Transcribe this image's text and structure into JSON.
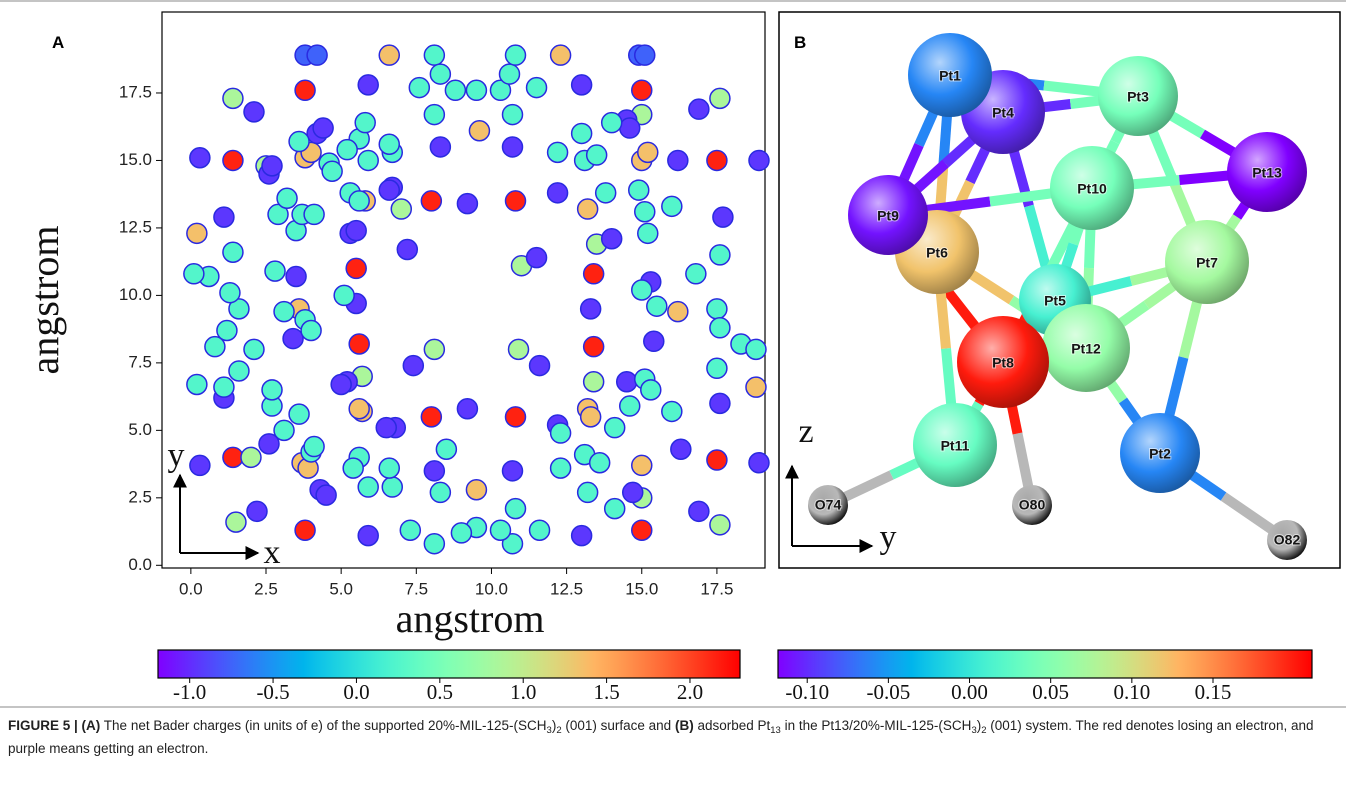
{
  "chart_data": {
    "type": "scatter",
    "panel_label": "A",
    "x_label": "angstrom",
    "y_label": "angstrom",
    "arrow_x_label": "x",
    "arrow_y_label": "y",
    "xlim": [
      -0.96,
      19.1
    ],
    "ylim": [
      -0.1,
      20.5
    ],
    "xticks": [
      {
        "value": 0,
        "label": "0.0"
      },
      2.5,
      {
        "value": 5,
        "label": "5.0"
      },
      7.5,
      {
        "value": 10,
        "label": "10.0"
      },
      12.5,
      {
        "value": 15,
        "label": "15.0"
      },
      17.5
    ],
    "yticks": [
      {
        "value": 0,
        "label": "0.0"
      },
      2.5,
      {
        "value": 5,
        "label": "5.0"
      },
      7.5,
      {
        "value": 10,
        "label": "10.0"
      },
      12.5,
      {
        "value": 15,
        "label": "15.0"
      },
      17.5
    ],
    "marker_edge_color": "#2a2ae0",
    "series": [
      {
        "x": [
          1.4,
          3.8,
          5.5,
          5.6,
          1.4,
          3.8,
          8.0,
          10.8,
          8.0,
          10.8,
          15.0,
          17.5,
          13.4,
          13.4,
          15.0,
          17.5
        ],
        "y": [
          15.0,
          17.6,
          11.0,
          8.2,
          4.0,
          1.3,
          13.5,
          13.5,
          5.5,
          5.5,
          17.6,
          15.0,
          10.8,
          8.1,
          1.3,
          3.9
        ],
        "values": [
          2.15,
          2.15,
          2.15,
          2.15,
          2.15,
          2.15,
          2.15,
          2.15,
          2.15,
          2.15,
          2.15,
          2.15,
          2.15,
          2.15,
          2.15,
          2.15
        ]
      },
      {
        "x": [
          0.2,
          3.8,
          4.0,
          3.6,
          5.8,
          6.6,
          12.3,
          9.6,
          13.2,
          15.0,
          15.2,
          16.2,
          18.8,
          13.2,
          13.3,
          15.0,
          9.5,
          3.7,
          3.9,
          5.7,
          5.6
        ],
        "y": [
          12.3,
          15.1,
          15.3,
          9.5,
          13.5,
          18.9,
          18.9,
          16.1,
          13.2,
          15.0,
          15.3,
          9.4,
          6.6,
          5.8,
          5.5,
          3.7,
          2.8,
          3.8,
          3.6,
          5.7,
          5.8
        ],
        "values": [
          1.35,
          1.35,
          1.35,
          1.35,
          1.35,
          1.35,
          1.35,
          1.35,
          1.35,
          1.35,
          1.35,
          1.35,
          1.35,
          1.35,
          1.35,
          1.35,
          1.35,
          1.35,
          1.35,
          1.35,
          1.35
        ]
      },
      {
        "x": [
          1.4,
          2.5,
          7.0,
          11.0,
          8.1,
          10.9,
          5.7,
          13.5,
          13.4,
          2.0,
          1.5,
          15.0,
          17.6,
          17.6,
          15.0
        ],
        "y": [
          17.3,
          14.8,
          13.2,
          11.1,
          8.0,
          8.0,
          7.0,
          11.9,
          6.8,
          4.0,
          1.6,
          2.5,
          1.5,
          17.3,
          16.7
        ],
        "values": [
          0.85,
          0.85,
          0.85,
          0.85,
          0.85,
          0.85,
          0.85,
          0.85,
          0.85,
          0.85,
          0.85,
          0.85,
          0.85,
          0.85,
          0.85
        ]
      },
      {
        "x": [
          0.3,
          2.1,
          2.6,
          2.7,
          4.2,
          4.4,
          5.9,
          6.7,
          6.6,
          7.2,
          5.3,
          5.5,
          8.3,
          10.7,
          9.2,
          11.5,
          12.2,
          13.0,
          14.5,
          14.6,
          16.2,
          16.9,
          17.7,
          15.3,
          15.4,
          13.3,
          14.0,
          17.6,
          14.5,
          16.3,
          14.7,
          13.0,
          11.6,
          10.7,
          8.1,
          9.2,
          7.4,
          5.5,
          3.5,
          3.4,
          1.1,
          1.1,
          0.3,
          2.2,
          5.9,
          4.3,
          4.5,
          6.8,
          6.5,
          2.6,
          5.2,
          5.0,
          18.9,
          18.9,
          16.9,
          12.2,
          3.8,
          4.2,
          14.9,
          15.1
        ],
        "y": [
          15.1,
          16.8,
          14.5,
          14.8,
          16.0,
          16.2,
          17.8,
          14.0,
          13.9,
          11.7,
          12.3,
          12.4,
          15.5,
          15.5,
          13.4,
          11.4,
          13.8,
          17.8,
          16.5,
          16.2,
          15.0,
          16.9,
          12.9,
          10.5,
          8.3,
          9.5,
          12.1,
          6.0,
          6.8,
          4.3,
          2.7,
          1.1,
          7.4,
          3.5,
          3.5,
          5.8,
          7.4,
          9.7,
          10.7,
          8.4,
          6.2,
          12.9,
          3.7,
          2.0,
          1.1,
          2.8,
          2.6,
          5.1,
          5.1,
          4.5,
          6.8,
          6.7,
          15.0,
          3.8,
          2.0,
          5.2,
          18.9,
          18.9,
          18.9,
          18.9
        ],
        "values": [
          -0.95,
          -0.95,
          -0.95,
          -0.95,
          -0.95,
          -0.95,
          -0.95,
          -0.95,
          -0.95,
          -0.95,
          -0.95,
          -0.95,
          -0.95,
          -0.95,
          -0.95,
          -0.95,
          -0.95,
          -0.95,
          -0.95,
          -0.95,
          -0.95,
          -0.95,
          -0.95,
          -0.95,
          -0.95,
          -0.95,
          -0.95,
          -0.95,
          -0.95,
          -0.95,
          -0.95,
          -0.95,
          -0.95,
          -0.95,
          -0.95,
          -0.95,
          -0.95,
          -0.95,
          -0.95,
          -0.95,
          -0.95,
          -0.95,
          -0.95,
          -0.95,
          -0.95,
          -0.95,
          -0.95,
          -0.95,
          -0.95,
          -0.95,
          -0.95,
          -0.95,
          -0.95,
          -0.95,
          -0.95,
          -0.95,
          -0.75,
          -0.75,
          -0.75,
          -0.75
        ]
      },
      {
        "x": [
          7.6,
          8.1,
          8.3,
          8.8,
          9.5,
          10.3,
          10.6,
          10.8,
          11.5,
          8.1,
          10.7,
          12.2,
          13.0,
          13.1,
          13.5,
          13.8,
          14.0,
          14.9,
          15.1,
          15.2,
          16.0,
          17.6,
          16.8,
          15.0,
          15.5,
          17.5,
          17.6,
          18.3,
          18.8,
          17.5,
          15.1,
          15.3,
          16.0,
          14.6,
          14.1,
          13.1,
          13.6,
          12.3,
          12.3,
          13.2,
          14.1,
          11.6,
          10.7,
          10.8,
          10.3,
          9.5,
          9.0,
          8.5,
          8.3,
          8.1,
          7.3,
          6.7,
          6.6,
          5.9,
          5.6,
          5.4,
          4.0,
          4.1,
          3.6,
          3.1,
          2.7,
          2.7,
          1.6,
          2.1,
          0.8,
          1.6,
          1.3,
          0.6,
          0.1,
          0.2,
          1.1,
          1.2,
          1.4,
          2.8,
          3.1,
          3.8,
          4.0,
          5.1,
          2.9,
          3.2,
          3.5,
          3.7,
          4.1,
          3.6,
          4.6,
          5.6,
          5.8,
          5.2,
          5.3,
          5.6,
          5.9,
          6.7,
          6.6,
          4.7
        ],
        "y": [
          17.7,
          18.9,
          18.2,
          17.6,
          17.6,
          17.6,
          18.2,
          18.9,
          17.7,
          16.7,
          16.7,
          15.3,
          16.0,
          15.0,
          15.2,
          13.8,
          16.4,
          13.9,
          13.1,
          12.3,
          13.3,
          11.5,
          10.8,
          10.2,
          9.6,
          9.5,
          8.8,
          8.2,
          8.0,
          7.3,
          6.9,
          6.5,
          5.7,
          5.9,
          5.1,
          4.1,
          3.8,
          3.6,
          4.9,
          2.7,
          2.1,
          1.3,
          0.8,
          2.1,
          1.3,
          1.4,
          1.2,
          4.3,
          2.7,
          0.8,
          1.3,
          2.9,
          3.6,
          2.9,
          4.0,
          3.6,
          4.2,
          4.4,
          5.6,
          5.0,
          5.9,
          6.5,
          7.2,
          8.0,
          8.1,
          9.5,
          10.1,
          10.7,
          10.8,
          6.7,
          6.6,
          8.7,
          11.6,
          10.9,
          9.4,
          9.1,
          8.7,
          10.0,
          13.0,
          13.6,
          12.4,
          13.0,
          13.0,
          15.7,
          14.9,
          15.8,
          16.4,
          15.4,
          13.8,
          13.5,
          15.0,
          15.3,
          15.6,
          14.6
        ],
        "values": [
          0.25,
          0.25,
          0.25,
          0.25,
          0.25,
          0.25,
          0.25,
          0.25,
          0.25,
          0.25,
          0.25,
          0.25,
          0.25,
          0.25,
          0.25,
          0.25,
          0.25,
          0.25,
          0.25,
          0.25,
          0.25,
          0.25,
          0.25,
          0.25,
          0.25,
          0.25,
          0.25,
          0.25,
          0.25,
          0.25,
          0.25,
          0.25,
          0.25,
          0.25,
          0.25,
          0.25,
          0.25,
          0.25,
          0.25,
          0.25,
          0.25,
          0.25,
          0.25,
          0.25,
          0.25,
          0.25,
          0.25,
          0.25,
          0.25,
          0.25,
          0.25,
          0.25,
          0.25,
          0.25,
          0.25,
          0.25,
          0.25,
          0.25,
          0.25,
          0.25,
          0.25,
          0.25,
          0.25,
          0.25,
          0.25,
          0.25,
          0.25,
          0.25,
          0.25,
          0.25,
          0.25,
          0.25,
          0.25,
          0.25,
          0.25,
          0.25,
          0.25,
          0.25,
          0.25,
          0.25,
          0.25,
          0.25,
          0.25,
          0.25,
          0.25,
          0.25,
          0.25,
          0.25,
          0.25,
          0.25,
          0.25,
          0.25,
          0.25,
          0.25
        ]
      }
    ]
  },
  "colorbar_a": {
    "colormap": "rainbow",
    "clim": [
      -1.19,
      2.3
    ],
    "ticks": [
      {
        "value": -1,
        "label": "-1.0"
      },
      -0.5,
      {
        "value": 0,
        "label": "0.0"
      },
      0.5,
      {
        "value": 1,
        "label": "1.0"
      },
      1.5,
      {
        "value": 2,
        "label": "2.0"
      }
    ]
  },
  "structure": {
    "panel_label": "B",
    "arrow_z_label": "z",
    "arrow_y_label": "y",
    "atoms": [
      {
        "label": "Pt1",
        "charge": -0.06
      },
      {
        "label": "Pt2",
        "charge": -0.06
      },
      {
        "label": "Pt3",
        "charge": 0.04
      },
      {
        "label": "Pt4",
        "charge": -0.1
      },
      {
        "label": "Pt5",
        "charge": 0.01
      },
      {
        "label": "Pt6",
        "charge": 0.12
      },
      {
        "label": "Pt7",
        "charge": 0.07
      },
      {
        "label": "Pt8",
        "charge": 0.2
      },
      {
        "label": "Pt9",
        "charge": -0.11
      },
      {
        "label": "Pt10",
        "charge": 0.04
      },
      {
        "label": "Pt11",
        "charge": 0.03
      },
      {
        "label": "Pt12",
        "charge": 0.06
      },
      {
        "label": "Pt13",
        "charge": -0.12
      },
      {
        "label": "O74",
        "color": "#b8b8b8"
      },
      {
        "label": "O80",
        "color": "#b8b8b8"
      },
      {
        "label": "O82",
        "color": "#b8b8b8"
      }
    ]
  },
  "colorbar_b": {
    "colormap": "rainbow",
    "clim": [
      -0.118,
      0.211
    ],
    "ticks": [
      {
        "value": -0.1,
        "label": "-0.10"
      },
      -0.05,
      {
        "value": 0,
        "label": "0.00"
      },
      0.05,
      {
        "value": 0.1,
        "label": "0.10"
      },
      0.15
    ]
  },
  "caption": {
    "parts": [
      "FIGURE 5 | ",
      "(A)",
      " The net Bader charges (in units of e) of the supported 20%-MIL-125-(SCH",
      "3",
      ")",
      "2",
      " (001) surface and ",
      "(B)",
      " adsorbed Pt",
      "13",
      " in the Pt13/20%-MIL-125-(SCH",
      "3",
      ")",
      "2",
      " (001) system. The red denotes losing an electron, and purple means getting an electron."
    ]
  }
}
